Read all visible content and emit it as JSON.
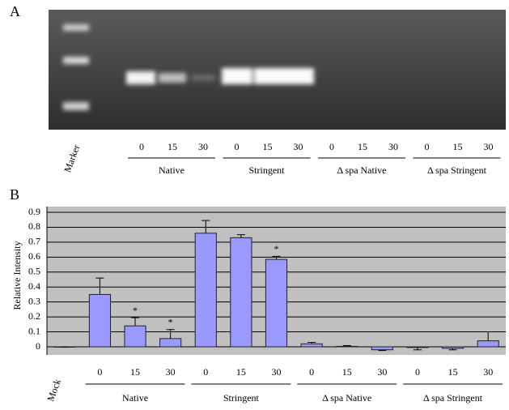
{
  "panel_a": {
    "label": "A",
    "marker_label": "Marker",
    "lanes": [
      "0",
      "15",
      "30",
      "0",
      "15",
      "30",
      "0",
      "15",
      "30",
      "0",
      "15",
      "30"
    ],
    "groups": [
      "Native",
      "Stringent",
      "Δ spa Native",
      "Δ spa Stringent"
    ]
  },
  "chart_data": {
    "type": "bar",
    "panel_label": "B",
    "y_label": "Relative Intensity",
    "categories": [
      "Mock",
      "0",
      "15",
      "30",
      "0",
      "15",
      "30",
      "0",
      "15",
      "30",
      "0",
      "15",
      "30"
    ],
    "values": [
      0,
      0.35,
      0.14,
      0.055,
      0.76,
      0.73,
      0.585,
      0.02,
      0.003,
      -0.02,
      -0.005,
      -0.01,
      0.04
    ],
    "errors": [
      0,
      0.11,
      0.055,
      0.06,
      0.085,
      0.02,
      0.02,
      0.01,
      0.005,
      0.005,
      0.015,
      0.01,
      0.06
    ],
    "groups": [
      {
        "label": "Native",
        "from": 1,
        "to": 3
      },
      {
        "label": "Stringent",
        "from": 4,
        "to": 6
      },
      {
        "label": "Δ spa Native",
        "from": 7,
        "to": 9
      },
      {
        "label": "Δ spa Stringent",
        "from": 10,
        "to": 12
      }
    ],
    "annotations": [
      {
        "text": "*",
        "at": 2
      },
      {
        "text": "*",
        "at": 3
      },
      {
        "text": "*",
        "at": 6
      }
    ],
    "color": "#9999ff",
    "ylim": [
      -0.06,
      0.9
    ],
    "yticks": [
      0,
      0.1,
      0.2,
      0.3,
      0.4,
      0.5,
      0.6,
      0.7,
      0.8,
      0.9
    ],
    "grid": true
  }
}
